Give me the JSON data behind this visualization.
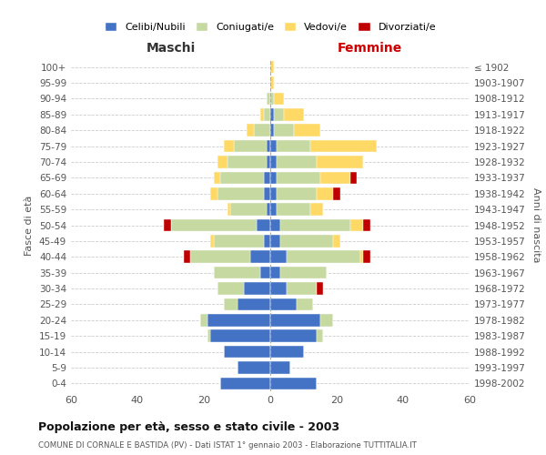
{
  "age_groups": [
    "0-4",
    "5-9",
    "10-14",
    "15-19",
    "20-24",
    "25-29",
    "30-34",
    "35-39",
    "40-44",
    "45-49",
    "50-54",
    "55-59",
    "60-64",
    "65-69",
    "70-74",
    "75-79",
    "80-84",
    "85-89",
    "90-94",
    "95-99",
    "100+"
  ],
  "birth_years": [
    "1998-2002",
    "1993-1997",
    "1988-1992",
    "1983-1987",
    "1978-1982",
    "1973-1977",
    "1968-1972",
    "1963-1967",
    "1958-1962",
    "1953-1957",
    "1948-1952",
    "1943-1947",
    "1938-1942",
    "1933-1937",
    "1928-1932",
    "1923-1927",
    "1918-1922",
    "1913-1917",
    "1908-1912",
    "1903-1907",
    "≤ 1902"
  ],
  "colors": {
    "celibi": "#4472C4",
    "coniugati": "#c5d9a0",
    "vedovi": "#FFD966",
    "divorziati": "#C00000"
  },
  "male": {
    "celibi": [
      15,
      10,
      14,
      18,
      19,
      10,
      8,
      3,
      6,
      2,
      4,
      1,
      2,
      2,
      1,
      1,
      0,
      0,
      0,
      0,
      0
    ],
    "coniugati": [
      0,
      0,
      0,
      1,
      2,
      4,
      8,
      14,
      18,
      15,
      26,
      11,
      14,
      13,
      12,
      10,
      5,
      2,
      1,
      0,
      0
    ],
    "vedovi": [
      0,
      0,
      0,
      0,
      0,
      0,
      0,
      0,
      0,
      1,
      0,
      1,
      2,
      2,
      3,
      3,
      2,
      1,
      0,
      0,
      0
    ],
    "divorziati": [
      0,
      0,
      0,
      0,
      0,
      0,
      0,
      0,
      2,
      0,
      2,
      0,
      0,
      0,
      0,
      0,
      0,
      0,
      0,
      0,
      0
    ]
  },
  "female": {
    "celibi": [
      14,
      6,
      10,
      14,
      15,
      8,
      5,
      3,
      5,
      3,
      3,
      2,
      2,
      2,
      2,
      2,
      1,
      1,
      0,
      0,
      0
    ],
    "coniugati": [
      0,
      0,
      0,
      2,
      4,
      5,
      9,
      14,
      22,
      16,
      21,
      10,
      12,
      13,
      12,
      10,
      6,
      3,
      1,
      0,
      0
    ],
    "vedovi": [
      0,
      0,
      0,
      0,
      0,
      0,
      0,
      0,
      1,
      2,
      4,
      4,
      5,
      9,
      14,
      20,
      8,
      6,
      3,
      1,
      1
    ],
    "divorziati": [
      0,
      0,
      0,
      0,
      0,
      0,
      2,
      0,
      2,
      0,
      2,
      0,
      2,
      2,
      0,
      0,
      0,
      0,
      0,
      0,
      0
    ]
  },
  "xlim": 60,
  "title": "Popolazione per età, sesso e stato civile - 2003",
  "subtitle": "COMUNE DI CORNALE E BASTIDA (PV) - Dati ISTAT 1° gennaio 2003 - Elaborazione TUTTITALIA.IT",
  "xlabel_left": "Maschi",
  "xlabel_right": "Femmine",
  "ylabel_left": "Fasce di età",
  "ylabel_right": "Anni di nascita",
  "legend_labels": [
    "Celibi/Nubili",
    "Coniugati/e",
    "Vedovi/e",
    "Divorziati/e"
  ],
  "bg_color": "#ffffff",
  "grid_color": "#cccccc",
  "text_color": "#555555",
  "header_color": "#333333"
}
